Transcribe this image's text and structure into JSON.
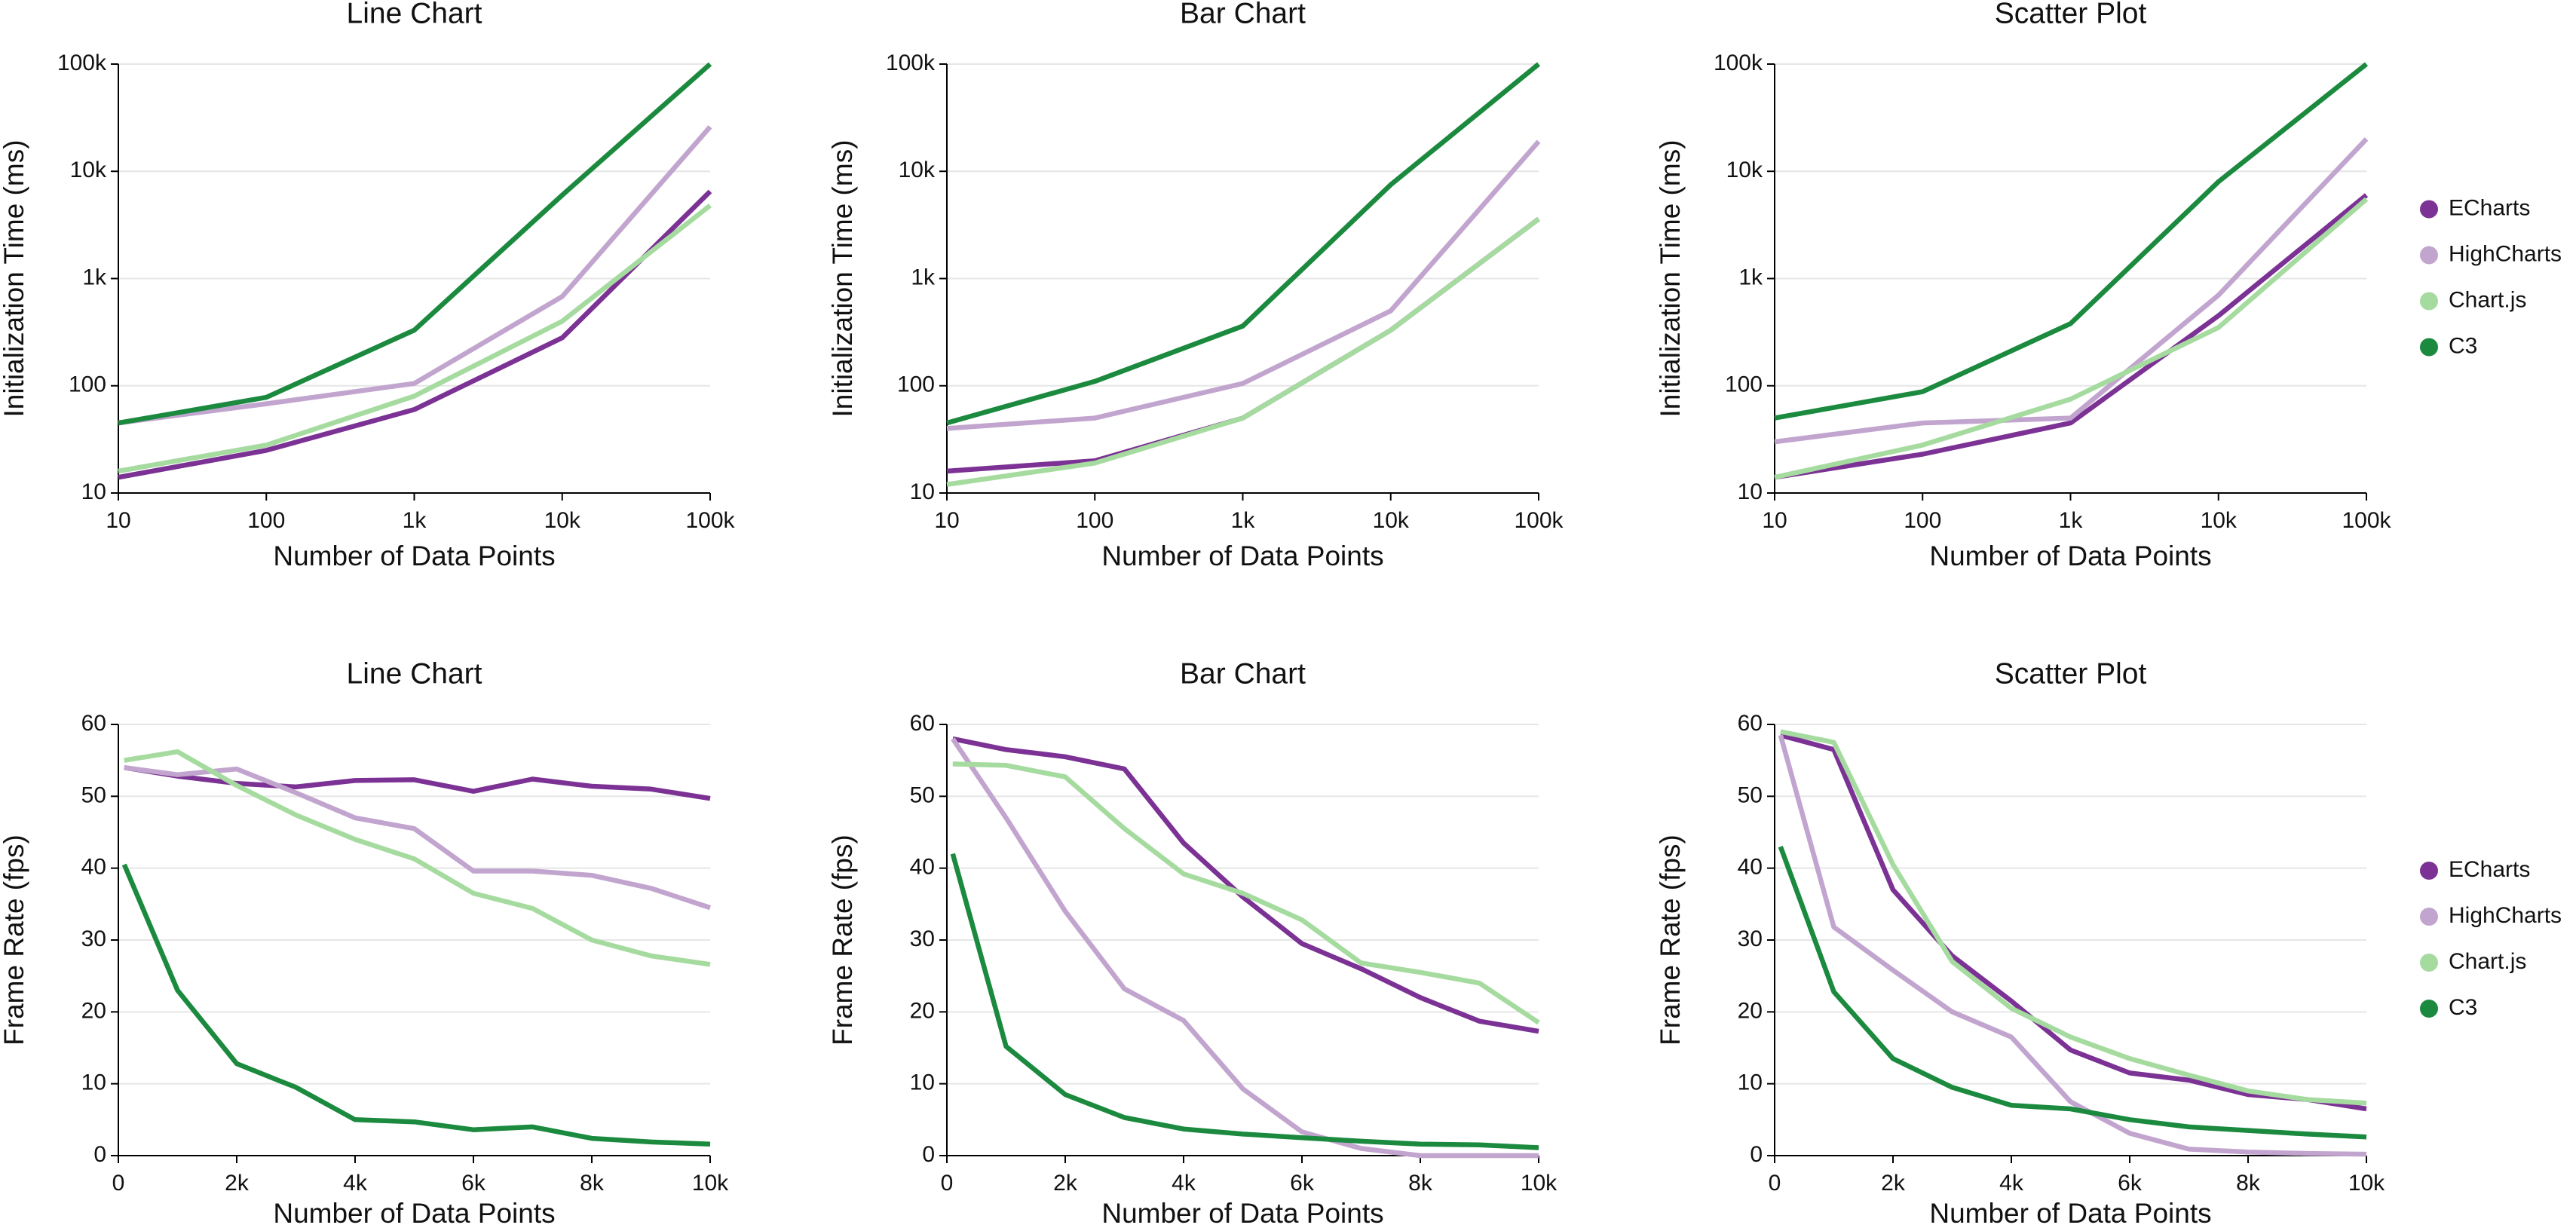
{
  "chart_data": [
    {
      "type": "line",
      "title": "Line Chart",
      "xlabel": "Number of Data Points",
      "ylabel": "Initialization Time (ms)",
      "xscale": "log",
      "yscale": "log",
      "grid": true,
      "x": [
        10,
        100,
        1000,
        10000,
        100000
      ],
      "xlim": [
        10,
        100000
      ],
      "xticks": [
        10,
        100,
        {
          "value": 1000,
          "label": "1k"
        },
        {
          "value": 10000,
          "label": "10k"
        },
        {
          "value": 100000,
          "label": "100k"
        }
      ],
      "ylim": [
        10,
        100000
      ],
      "yticks": [
        10,
        100,
        {
          "value": 1000,
          "label": "1k"
        },
        {
          "value": 10000,
          "label": "10k"
        },
        {
          "value": 100000,
          "label": "100k"
        }
      ],
      "series": [
        {
          "name": "ECharts",
          "color": "#7b3294",
          "values": [
            14,
            25,
            60,
            280,
            6500
          ]
        },
        {
          "name": "HighCharts",
          "color": "#c2a5cf",
          "values": [
            45,
            68,
            105,
            680,
            26000
          ]
        },
        {
          "name": "Chart.js",
          "color": "#a6dba0",
          "values": [
            16,
            28,
            80,
            400,
            4800
          ]
        },
        {
          "name": "C3",
          "color": "#1b8a3f",
          "values": [
            45,
            78,
            330,
            6000,
            100000
          ]
        }
      ]
    },
    {
      "type": "line",
      "title": "Bar Chart",
      "xlabel": "Number of Data Points",
      "ylabel": "Initialization Time (ms)",
      "xscale": "log",
      "yscale": "log",
      "grid": true,
      "x": [
        10,
        100,
        1000,
        10000,
        100000
      ],
      "xlim": [
        10,
        100000
      ],
      "xticks": [
        10,
        100,
        {
          "value": 1000,
          "label": "1k"
        },
        {
          "value": 10000,
          "label": "10k"
        },
        {
          "value": 100000,
          "label": "100k"
        }
      ],
      "ylim": [
        10,
        100000
      ],
      "yticks": [
        10,
        100,
        {
          "value": 1000,
          "label": "1k"
        },
        {
          "value": 10000,
          "label": "10k"
        },
        {
          "value": 100000,
          "label": "100k"
        }
      ],
      "series": [
        {
          "name": "ECharts",
          "color": "#7b3294",
          "values": [
            16,
            20,
            50,
            330,
            3600
          ]
        },
        {
          "name": "HighCharts",
          "color": "#c2a5cf",
          "values": [
            40,
            50,
            105,
            500,
            19000
          ]
        },
        {
          "name": "Chart.js",
          "color": "#a6dba0",
          "values": [
            12,
            19,
            50,
            330,
            3600
          ]
        },
        {
          "name": "C3",
          "color": "#1b8a3f",
          "values": [
            45,
            110,
            360,
            7500,
            100000
          ]
        }
      ]
    },
    {
      "type": "line",
      "title": "Scatter Plot",
      "xlabel": "Number of Data Points",
      "ylabel": "Initialization Time (ms)",
      "xscale": "log",
      "yscale": "log",
      "grid": true,
      "legend": "right",
      "x": [
        10,
        100,
        1000,
        10000,
        100000
      ],
      "xlim": [
        10,
        100000
      ],
      "xticks": [
        10,
        100,
        {
          "value": 1000,
          "label": "1k"
        },
        {
          "value": 10000,
          "label": "10k"
        },
        {
          "value": 100000,
          "label": "100k"
        }
      ],
      "ylim": [
        10,
        100000
      ],
      "yticks": [
        10,
        100,
        {
          "value": 1000,
          "label": "1k"
        },
        {
          "value": 10000,
          "label": "10k"
        },
        {
          "value": 100000,
          "label": "100k"
        }
      ],
      "series": [
        {
          "name": "ECharts",
          "color": "#7b3294",
          "values": [
            14,
            23,
            45,
            450,
            6000
          ]
        },
        {
          "name": "HighCharts",
          "color": "#c2a5cf",
          "values": [
            30,
            45,
            50,
            700,
            20000
          ]
        },
        {
          "name": "Chart.js",
          "color": "#a6dba0",
          "values": [
            14,
            28,
            75,
            350,
            5500
          ]
        },
        {
          "name": "C3",
          "color": "#1b8a3f",
          "values": [
            50,
            88,
            380,
            8000,
            100000
          ]
        }
      ]
    },
    {
      "type": "line",
      "title": "Line Chart",
      "xlabel": "Number of Data Points",
      "ylabel": "Frame Rate (fps)",
      "grid": true,
      "x": [
        100,
        1000,
        2000,
        3000,
        4000,
        5000,
        6000,
        7000,
        8000,
        9000,
        10000
      ],
      "xlim": [
        0,
        10000
      ],
      "xticks": [
        0,
        {
          "value": 2000,
          "label": "2k"
        },
        {
          "value": 4000,
          "label": "4k"
        },
        {
          "value": 6000,
          "label": "6k"
        },
        {
          "value": 8000,
          "label": "8k"
        },
        {
          "value": 10000,
          "label": "10k"
        }
      ],
      "ylim": [
        0,
        60
      ],
      "yticks": [
        0,
        10,
        20,
        30,
        40,
        50,
        60
      ],
      "series": [
        {
          "name": "ECharts",
          "color": "#7b3294",
          "values": [
            54,
            52.8,
            51.8,
            51.3,
            52.2,
            52.3,
            50.7,
            52.4,
            51.4,
            51,
            49.7
          ]
        },
        {
          "name": "HighCharts",
          "color": "#c2a5cf",
          "values": [
            54,
            53,
            53.8,
            50.5,
            47,
            45.5,
            39.6,
            39.6,
            39,
            37.2,
            34.5
          ]
        },
        {
          "name": "Chart.js",
          "color": "#a6dba0",
          "values": [
            55,
            56.2,
            51.5,
            47.4,
            44,
            41.3,
            36.5,
            34.4,
            30,
            27.8,
            26.6
          ]
        },
        {
          "name": "C3",
          "color": "#1b8a3f",
          "values": [
            40.5,
            23,
            12.8,
            9.5,
            5,
            4.7,
            3.6,
            4,
            2.4,
            1.9,
            1.6
          ]
        }
      ]
    },
    {
      "type": "line",
      "title": "Bar Chart",
      "xlabel": "Number of Data Points",
      "ylabel": "Frame Rate (fps)",
      "grid": true,
      "x": [
        100,
        1000,
        2000,
        3000,
        4000,
        5000,
        6000,
        7000,
        8000,
        9000,
        10000
      ],
      "xlim": [
        0,
        10000
      ],
      "xticks": [
        0,
        {
          "value": 2000,
          "label": "2k"
        },
        {
          "value": 4000,
          "label": "4k"
        },
        {
          "value": 6000,
          "label": "6k"
        },
        {
          "value": 8000,
          "label": "8k"
        },
        {
          "value": 10000,
          "label": "10k"
        }
      ],
      "ylim": [
        0,
        60
      ],
      "yticks": [
        0,
        10,
        20,
        30,
        40,
        50,
        60
      ],
      "series": [
        {
          "name": "ECharts",
          "color": "#7b3294",
          "values": [
            58,
            56.5,
            55.5,
            53.8,
            43.5,
            36,
            29.5,
            26,
            22,
            18.7,
            17.3
          ]
        },
        {
          "name": "HighCharts",
          "color": "#c2a5cf",
          "values": [
            58,
            47,
            34,
            23.2,
            18.8,
            9.3,
            3.3,
            1,
            0,
            0,
            0
          ]
        },
        {
          "name": "Chart.js",
          "color": "#a6dba0",
          "values": [
            54.5,
            54.3,
            52.7,
            45.5,
            39.2,
            36.5,
            32.8,
            26.8,
            25.5,
            24,
            18.5
          ]
        },
        {
          "name": "C3",
          "color": "#1b8a3f",
          "values": [
            42,
            15.2,
            8.5,
            5.3,
            3.7,
            3,
            2.5,
            2,
            1.6,
            1.5,
            1.1
          ]
        }
      ]
    },
    {
      "type": "line",
      "title": "Scatter Plot",
      "xlabel": "Number of Data Points",
      "ylabel": "Frame Rate (fps)",
      "grid": true,
      "legend": "right",
      "x": [
        100,
        1000,
        2000,
        3000,
        4000,
        5000,
        6000,
        7000,
        8000,
        9000,
        10000
      ],
      "xlim": [
        0,
        10000
      ],
      "xticks": [
        0,
        {
          "value": 2000,
          "label": "2k"
        },
        {
          "value": 4000,
          "label": "4k"
        },
        {
          "value": 6000,
          "label": "6k"
        },
        {
          "value": 8000,
          "label": "8k"
        },
        {
          "value": 10000,
          "label": "10k"
        }
      ],
      "ylim": [
        0,
        60
      ],
      "yticks": [
        0,
        10,
        20,
        30,
        40,
        50,
        60
      ],
      "series": [
        {
          "name": "ECharts",
          "color": "#7b3294",
          "values": [
            58.5,
            56.5,
            37,
            27.8,
            21.5,
            14.7,
            11.5,
            10.5,
            8.5,
            7.8,
            6.5
          ]
        },
        {
          "name": "HighCharts",
          "color": "#c2a5cf",
          "values": [
            58.5,
            31.8,
            25.8,
            20,
            16.5,
            7.5,
            3.1,
            0.9,
            0.5,
            0.3,
            0.2
          ]
        },
        {
          "name": "Chart.js",
          "color": "#a6dba0",
          "values": [
            59,
            57.5,
            40.5,
            27,
            20.5,
            16.5,
            13.5,
            11.2,
            9,
            7.8,
            7.3
          ]
        },
        {
          "name": "C3",
          "color": "#1b8a3f",
          "values": [
            43,
            22.8,
            13.5,
            9.5,
            7,
            6.5,
            5,
            4,
            3.5,
            3,
            2.6
          ]
        }
      ]
    }
  ]
}
